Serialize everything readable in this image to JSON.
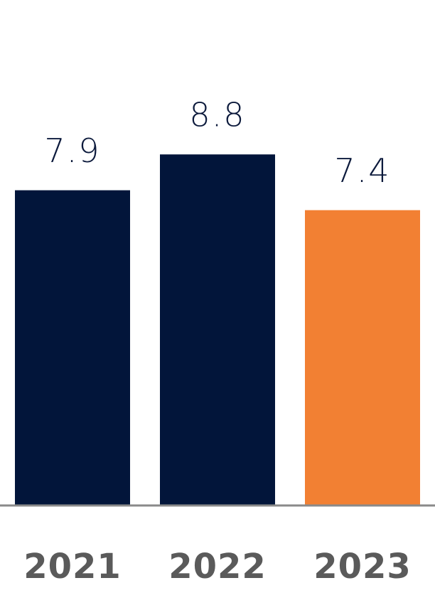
{
  "chart_data": {
    "type": "bar",
    "categories": [
      "2021",
      "2022",
      "2023"
    ],
    "values": [
      7.9,
      8.8,
      7.4
    ],
    "colors": [
      "#02153a",
      "#02153a",
      "#f28033"
    ],
    "ylim": [
      0,
      12
    ]
  }
}
